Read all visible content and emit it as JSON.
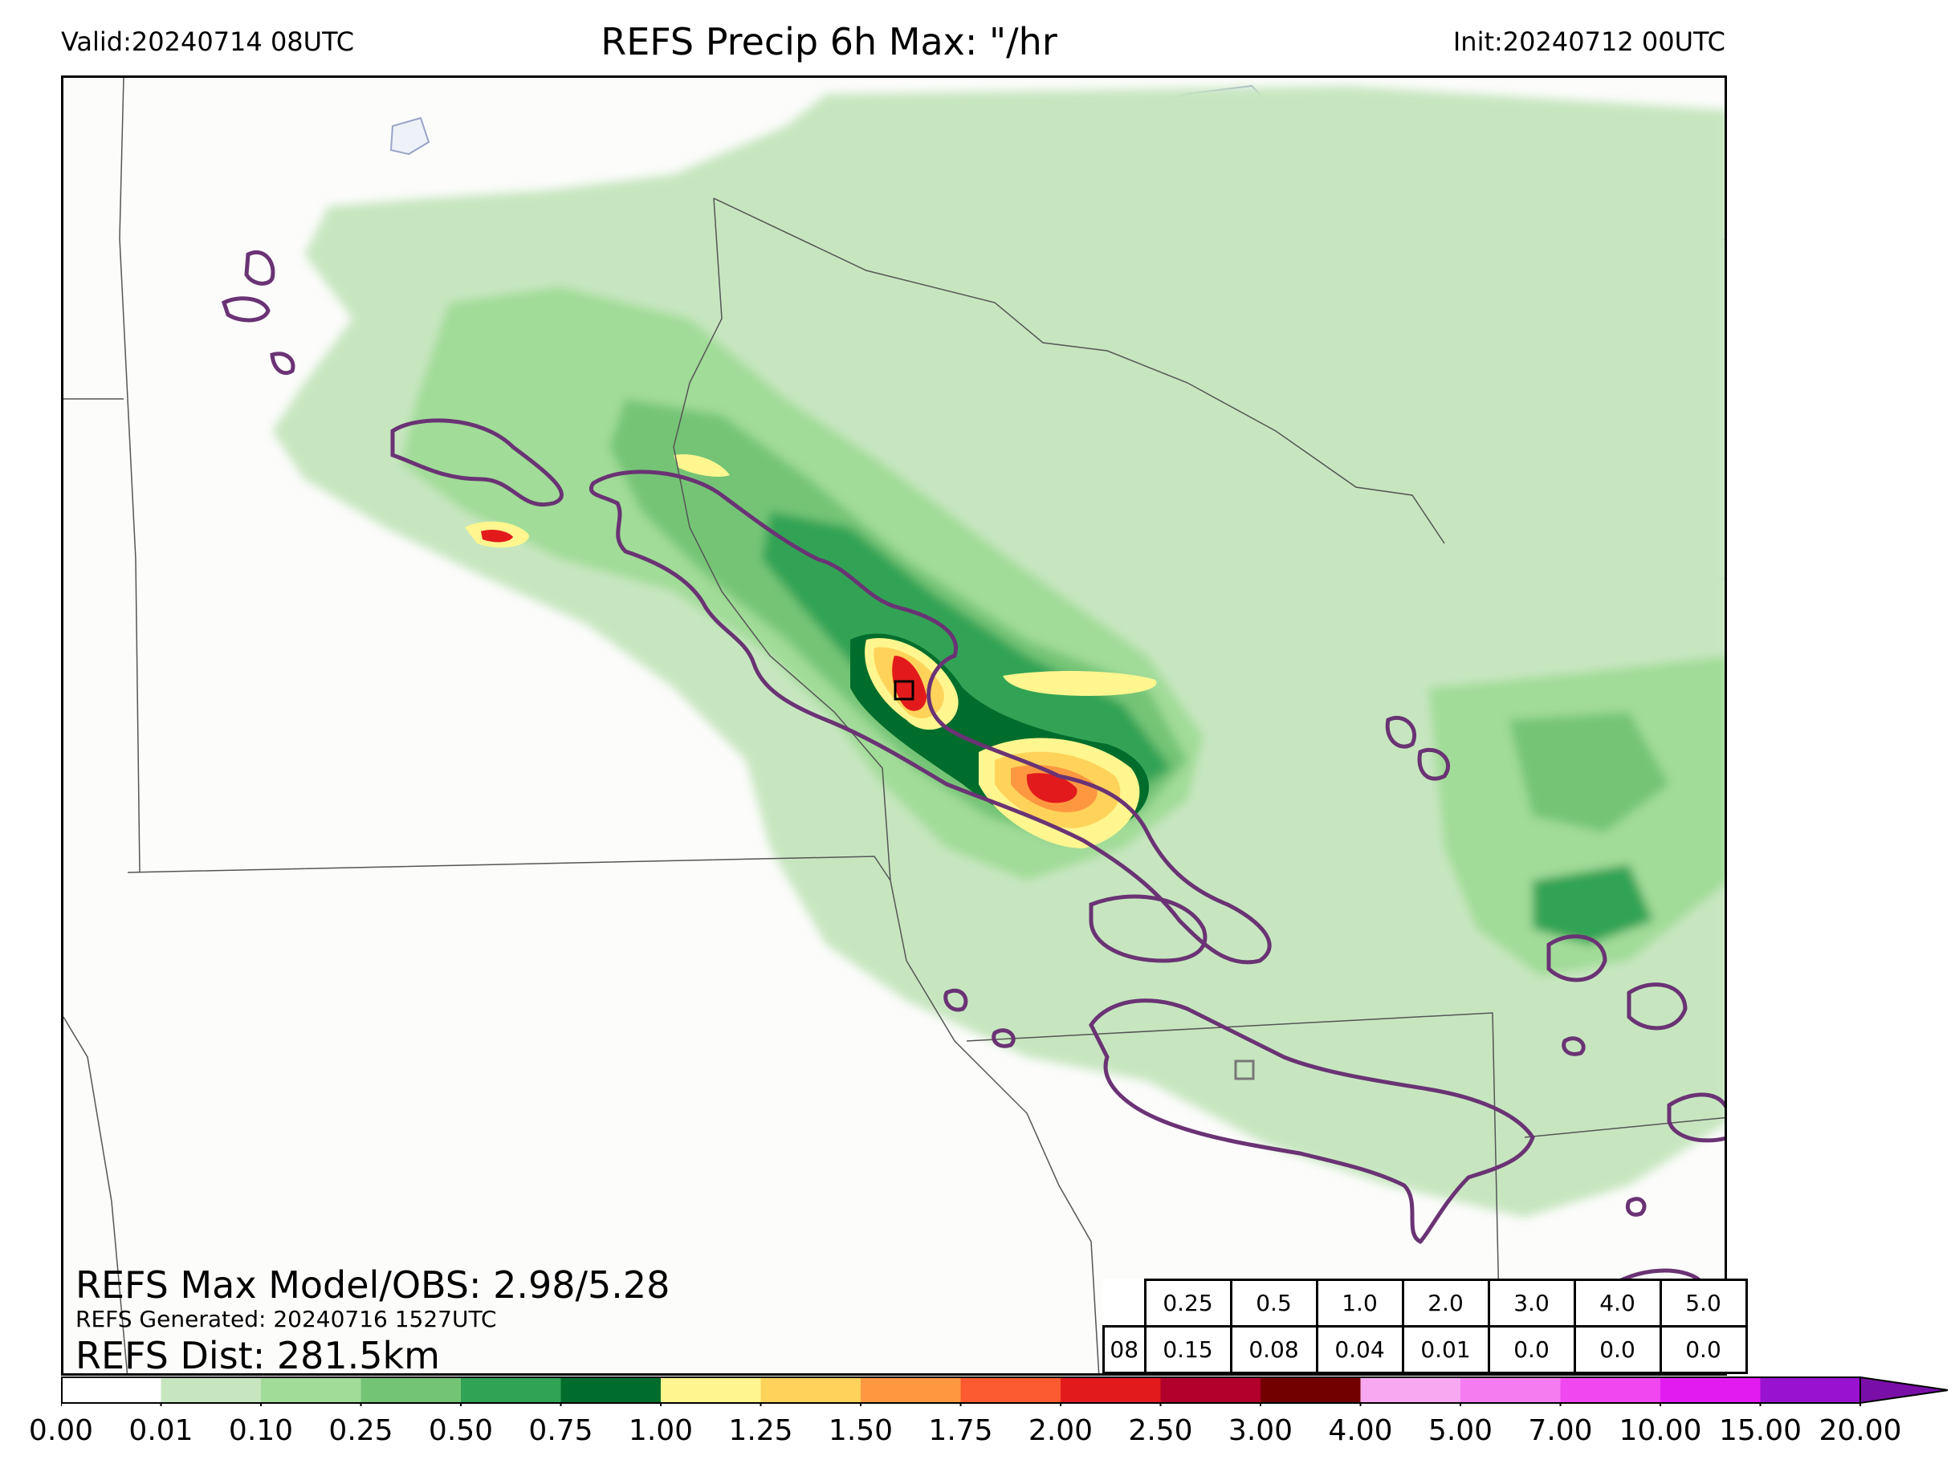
{
  "header": {
    "valid": "Valid:20240714 08UTC",
    "title": "REFS Precip 6h Max: \"/hr",
    "init": "Init:20240712 00UTC"
  },
  "stats": {
    "max_model_obs": "REFS Max Model/OBS: 2.98/5.28",
    "generated": "REFS Generated: 20240716 1527UTC",
    "dist": "REFS Dist: 281.5km"
  },
  "threshold_table": {
    "thresholds": [
      "0.25",
      "0.5",
      "1.0",
      "2.0",
      "3.0",
      "4.0",
      "5.0"
    ],
    "hour": "08",
    "values": [
      "0.15",
      "0.08",
      "0.04",
      "0.01",
      "0.0",
      "0.0",
      "0.0"
    ]
  },
  "colorbar": {
    "ticks": [
      "0.00",
      "0.01",
      "0.10",
      "0.25",
      "0.50",
      "0.75",
      "1.00",
      "1.25",
      "1.50",
      "1.75",
      "2.00",
      "2.50",
      "3.00",
      "4.00",
      "5.00",
      "7.00",
      "10.00",
      "15.00",
      "20.00"
    ],
    "colors": [
      "#ffffff",
      "#c7e6c0",
      "#a1dc98",
      "#74c476",
      "#31a354",
      "#006d2c",
      "#fff68f",
      "#ffd35a",
      "#fe9840",
      "#fc5a30",
      "#e31a1c",
      "#b1002b",
      "#720000",
      "#f8a8f0",
      "#f47cf0",
      "#f047f0",
      "#e21cf0",
      "#9812d0"
    ],
    "extend_color": "#7a0fa8"
  },
  "map": {
    "land_color": "#fcfcfb",
    "lake_color": "#eef2f8",
    "obs_contour_color": "#6a3374"
  }
}
